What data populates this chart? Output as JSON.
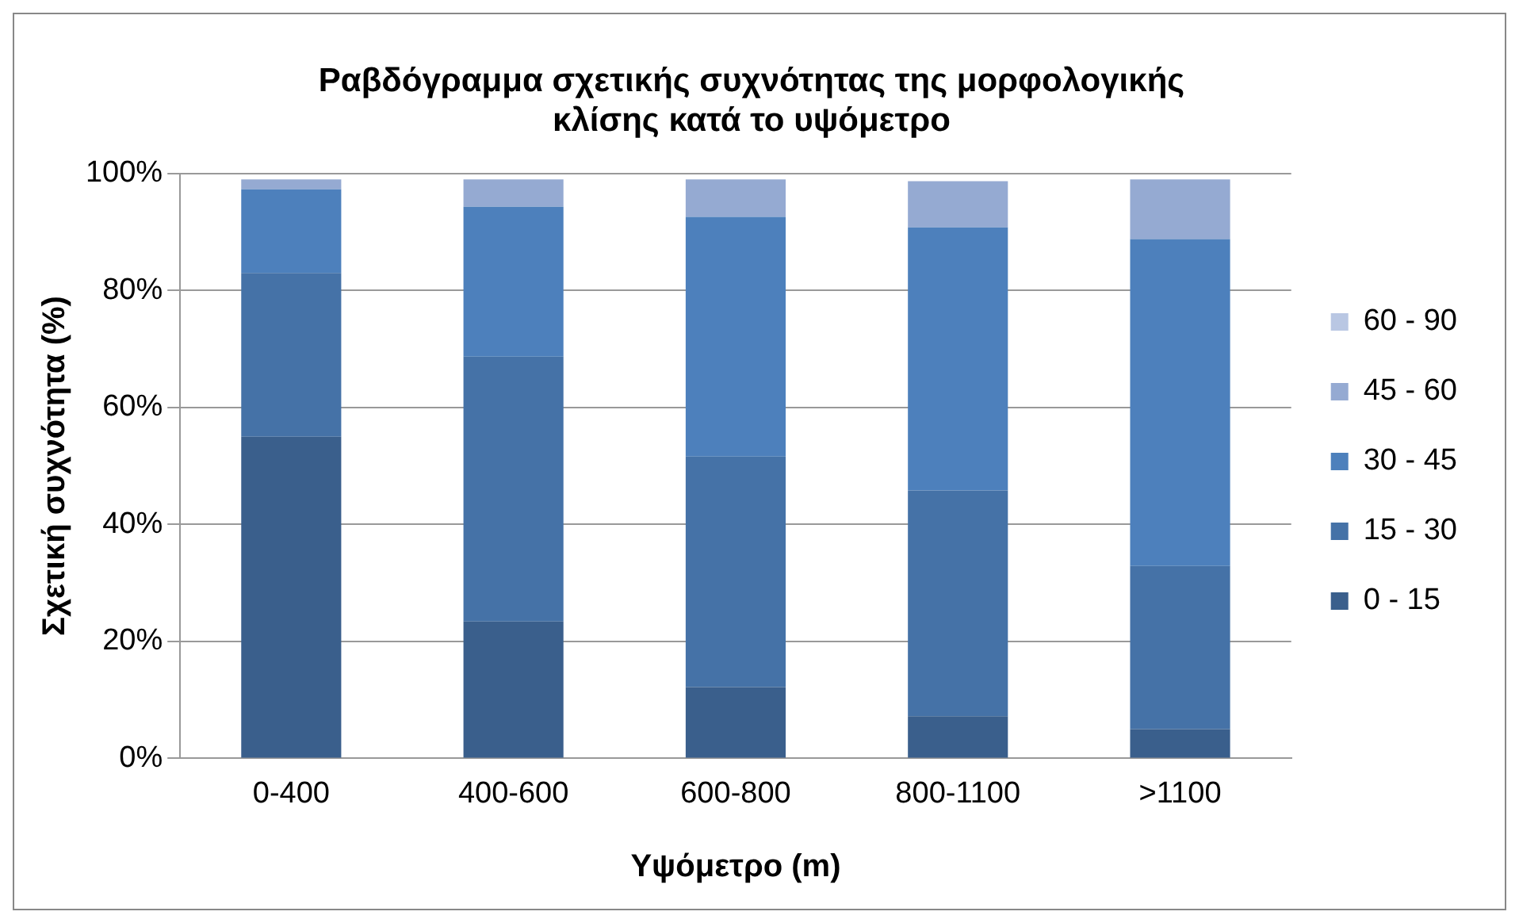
{
  "chart_data": {
    "type": "bar",
    "title": [
      "Ραβδόγραμμα σχετικής συχνότητας της μορφολογικής",
      "κλίσης κατά το υψόμετρο"
    ],
    "xlabel": "Υψόμετρο (m)",
    "ylabel": "Σχετική συχνότητα (%)",
    "categories": [
      "0-400",
      "400-600",
      "600-800",
      "800-1100",
      ">1100"
    ],
    "stacked": true,
    "series": [
      {
        "name": "0 - 15",
        "color": "#3a5f8c",
        "values": [
          55,
          23.4,
          12.2,
          7.2,
          5
        ]
      },
      {
        "name": "15 - 30",
        "color": "#4572a7",
        "values": [
          28,
          45.3,
          39.4,
          38.6,
          27.9
        ]
      },
      {
        "name": "30 - 45",
        "color": "#4d80bc",
        "values": [
          14.3,
          25.6,
          41,
          45,
          55.9
        ]
      },
      {
        "name": "45 - 60",
        "color": "#95aad2",
        "values": [
          1.7,
          4.7,
          6.4,
          7.9,
          10.2
        ]
      },
      {
        "name": "60 - 90",
        "color": "#b9c7e3",
        "values": [
          0,
          0,
          0,
          0,
          0
        ]
      }
    ],
    "ylim": [
      0,
      100
    ],
    "yticks": [
      {
        "value": 0,
        "label": "0%"
      },
      {
        "value": 20,
        "label": "20%"
      },
      {
        "value": 40,
        "label": "40%"
      },
      {
        "value": 60,
        "label": "60%"
      },
      {
        "value": 80,
        "label": "80%"
      },
      {
        "value": 100,
        "label": "100%"
      }
    ],
    "grid": "y",
    "legend": "right"
  }
}
